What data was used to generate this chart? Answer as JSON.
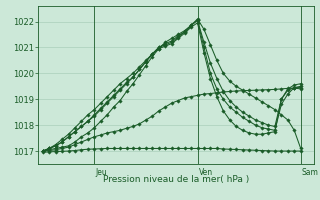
{
  "title": "Pression niveau de la mer( hPa )",
  "bg_color": "#cce8d8",
  "line_color": "#1a5c28",
  "grid_color": "#aacfba",
  "ylim": [
    1016.5,
    1022.6
  ],
  "yticks": [
    1017,
    1018,
    1019,
    1020,
    1021,
    1022
  ],
  "xlim": [
    -2,
    126
  ],
  "x_jeu": 24,
  "x_ven": 72,
  "x_sam": 120,
  "lines": [
    [
      0,
      1017.0,
      3,
      1017.05,
      6,
      1017.1,
      9,
      1017.15,
      12,
      1017.2,
      15,
      1017.35,
      18,
      1017.55,
      21,
      1017.7,
      24,
      1017.9,
      27,
      1018.15,
      30,
      1018.4,
      33,
      1018.7,
      36,
      1018.95,
      39,
      1019.3,
      42,
      1019.6,
      45,
      1019.95,
      48,
      1020.3,
      51,
      1020.65,
      54,
      1020.95,
      57,
      1021.2,
      60,
      1021.35,
      63,
      1021.5,
      66,
      1021.65,
      69,
      1021.85,
      72,
      1022.1,
      75,
      1021.7,
      78,
      1021.1,
      81,
      1020.5,
      84,
      1020.0,
      87,
      1019.7,
      90,
      1019.5,
      93,
      1019.35,
      96,
      1019.2,
      99,
      1019.05,
      102,
      1018.9,
      105,
      1018.75,
      108,
      1018.6,
      111,
      1018.4,
      114,
      1018.2,
      117,
      1017.8,
      120,
      1017.1
    ],
    [
      0,
      1017.0,
      3,
      1017.1,
      6,
      1017.2,
      9,
      1017.35,
      12,
      1017.55,
      15,
      1017.75,
      18,
      1017.95,
      21,
      1018.15,
      24,
      1018.35,
      27,
      1018.6,
      30,
      1018.85,
      33,
      1019.1,
      36,
      1019.35,
      39,
      1019.6,
      42,
      1019.85,
      45,
      1020.15,
      48,
      1020.45,
      51,
      1020.75,
      54,
      1021.0,
      57,
      1021.15,
      60,
      1021.25,
      63,
      1021.45,
      66,
      1021.6,
      69,
      1021.85,
      72,
      1022.05,
      75,
      1021.2,
      78,
      1020.4,
      81,
      1019.8,
      84,
      1019.3,
      87,
      1018.95,
      90,
      1018.7,
      93,
      1018.5,
      96,
      1018.35,
      99,
      1018.2,
      102,
      1018.1,
      105,
      1018.0,
      108,
      1017.95,
      111,
      1019.0,
      114,
      1019.4,
      117,
      1019.55,
      120,
      1019.6
    ],
    [
      0,
      1017.0,
      3,
      1017.1,
      6,
      1017.2,
      9,
      1017.35,
      12,
      1017.55,
      15,
      1017.75,
      18,
      1017.95,
      21,
      1018.15,
      24,
      1018.4,
      27,
      1018.65,
      30,
      1018.9,
      33,
      1019.15,
      36,
      1019.4,
      39,
      1019.65,
      42,
      1019.85,
      45,
      1020.15,
      48,
      1020.45,
      51,
      1020.75,
      54,
      1021.0,
      57,
      1021.1,
      60,
      1021.2,
      63,
      1021.4,
      66,
      1021.6,
      69,
      1021.85,
      72,
      1022.05,
      75,
      1021.0,
      78,
      1020.0,
      81,
      1019.4,
      84,
      1019.0,
      87,
      1018.7,
      90,
      1018.5,
      93,
      1018.3,
      96,
      1018.15,
      99,
      1018.0,
      102,
      1017.9,
      105,
      1017.85,
      108,
      1017.8,
      111,
      1018.8,
      114,
      1019.2,
      117,
      1019.45,
      120,
      1019.5
    ],
    [
      0,
      1017.0,
      3,
      1017.02,
      6,
      1017.05,
      9,
      1017.1,
      12,
      1017.15,
      15,
      1017.25,
      18,
      1017.35,
      21,
      1017.45,
      24,
      1017.55,
      27,
      1017.62,
      30,
      1017.7,
      33,
      1017.75,
      36,
      1017.8,
      39,
      1017.88,
      42,
      1017.95,
      45,
      1018.05,
      48,
      1018.2,
      51,
      1018.35,
      54,
      1018.55,
      57,
      1018.7,
      60,
      1018.85,
      63,
      1018.95,
      66,
      1019.05,
      69,
      1019.1,
      72,
      1019.15,
      75,
      1019.2,
      78,
      1019.22,
      81,
      1019.25,
      84,
      1019.28,
      87,
      1019.3,
      90,
      1019.32,
      93,
      1019.33,
      96,
      1019.34,
      99,
      1019.35,
      102,
      1019.36,
      105,
      1019.37,
      108,
      1019.38,
      111,
      1019.4,
      114,
      1019.42,
      117,
      1019.43,
      120,
      1019.4
    ],
    [
      0,
      1016.95,
      3,
      1016.97,
      6,
      1016.98,
      9,
      1016.99,
      12,
      1017.0,
      15,
      1017.02,
      18,
      1017.05,
      21,
      1017.07,
      24,
      1017.08,
      27,
      1017.09,
      30,
      1017.1,
      33,
      1017.1,
      36,
      1017.1,
      39,
      1017.1,
      42,
      1017.1,
      45,
      1017.1,
      48,
      1017.1,
      51,
      1017.1,
      54,
      1017.1,
      57,
      1017.1,
      60,
      1017.1,
      63,
      1017.1,
      66,
      1017.1,
      69,
      1017.1,
      72,
      1017.1,
      75,
      1017.1,
      78,
      1017.1,
      81,
      1017.1,
      84,
      1017.08,
      87,
      1017.07,
      90,
      1017.06,
      93,
      1017.05,
      96,
      1017.04,
      99,
      1017.03,
      102,
      1017.02,
      105,
      1017.01,
      108,
      1017.0,
      111,
      1017.0,
      114,
      1017.0,
      117,
      1017.0,
      120,
      1017.0
    ],
    [
      0,
      1017.0,
      3,
      1017.1,
      6,
      1017.25,
      9,
      1017.45,
      12,
      1017.65,
      15,
      1017.9,
      18,
      1018.15,
      21,
      1018.4,
      24,
      1018.6,
      27,
      1018.85,
      30,
      1019.1,
      33,
      1019.35,
      36,
      1019.6,
      39,
      1019.8,
      42,
      1020.0,
      45,
      1020.25,
      48,
      1020.5,
      51,
      1020.75,
      54,
      1020.95,
      57,
      1021.05,
      60,
      1021.15,
      63,
      1021.35,
      66,
      1021.55,
      69,
      1021.78,
      72,
      1021.95,
      75,
      1020.8,
      78,
      1019.8,
      81,
      1019.1,
      84,
      1018.55,
      87,
      1018.2,
      90,
      1017.95,
      93,
      1017.8,
      96,
      1017.7,
      99,
      1017.65,
      102,
      1017.65,
      105,
      1017.7,
      108,
      1017.75,
      111,
      1019.0,
      114,
      1019.35,
      117,
      1019.45,
      120,
      1019.45
    ]
  ]
}
